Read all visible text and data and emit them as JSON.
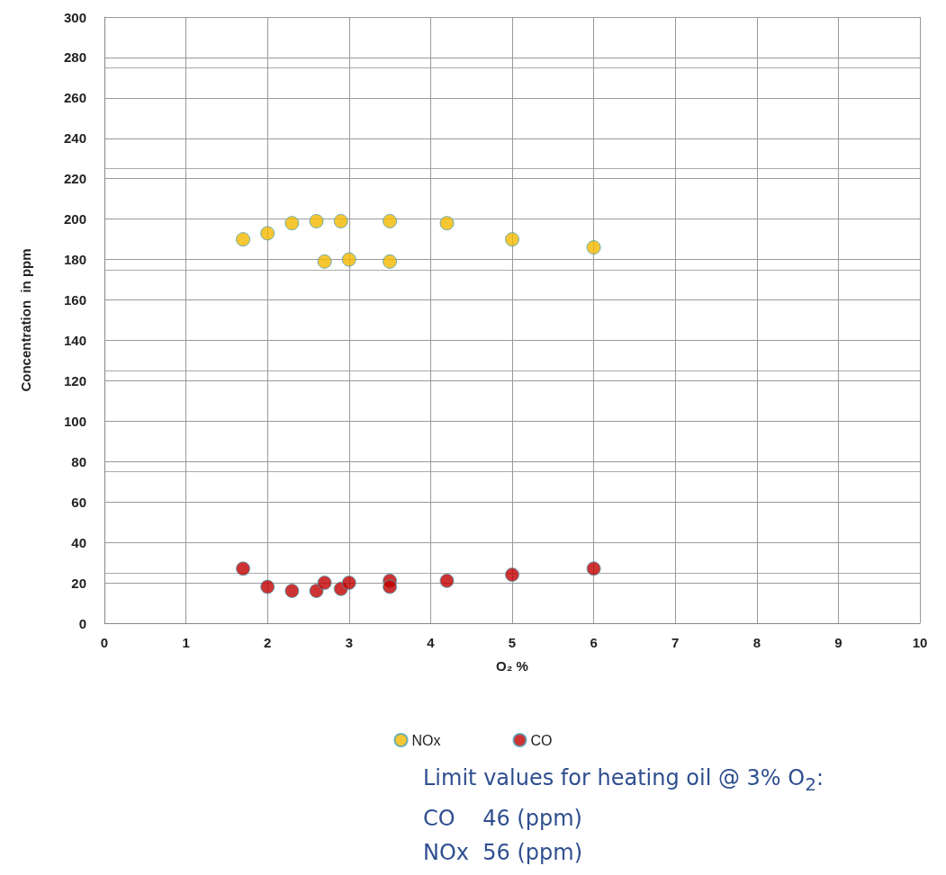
{
  "chart_data": {
    "type": "scatter",
    "xlabel": "O₂ %",
    "ylabel": "Concentration  in ppm",
    "xlim": [
      0,
      10
    ],
    "xticks": [
      0,
      1,
      2,
      3,
      4,
      5,
      6,
      7,
      8,
      9,
      10
    ],
    "ylim": [
      0,
      300
    ],
    "yticks": [
      0,
      20,
      40,
      60,
      80,
      100,
      120,
      140,
      160,
      180,
      200,
      220,
      240,
      260,
      280,
      300
    ],
    "grid": true,
    "legend": "bottom",
    "marker": "circle",
    "series": [
      {
        "name": "NOx",
        "color": "#f5b800",
        "x": [
          1.7,
          2.0,
          2.3,
          2.6,
          2.9,
          3.5,
          4.2,
          5.0,
          6.0,
          2.7,
          3.0,
          3.5
        ],
        "values": [
          190,
          193,
          198,
          199,
          199,
          199,
          198,
          190,
          186,
          179,
          180,
          179
        ]
      },
      {
        "name": "CO",
        "color": "#c00000",
        "x": [
          1.7,
          2.0,
          2.3,
          2.6,
          2.7,
          2.9,
          3.0,
          3.5,
          3.5,
          4.2,
          5.0,
          6.0
        ],
        "values": [
          27,
          18,
          16,
          16,
          20,
          17,
          20,
          21,
          18,
          21,
          24,
          27
        ]
      }
    ],
    "annotations": [
      "Limit values for heating oil @ 3% O$_{2}$:",
      "CO    46 (ppm)",
      "NOx  56 (ppm)"
    ]
  }
}
